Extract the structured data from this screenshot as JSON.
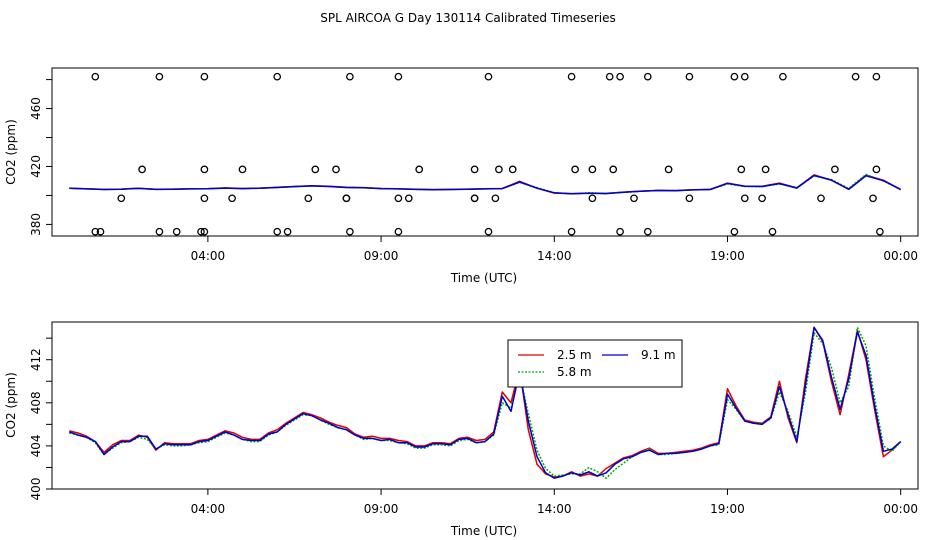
{
  "figure_title": "SPL AIRCOA G  Day 130114  Calibrated Timeseries",
  "chart_data": [
    {
      "type": "line",
      "title": "",
      "xlabel": "Time (UTC)",
      "ylabel": "CO2 (ppm)",
      "xlim": [
        -0.5,
        24.5
      ],
      "ylim": [
        372,
        488
      ],
      "x_tick_values": [
        4,
        9,
        14,
        19,
        24
      ],
      "x_tick_labels": [
        "04:00",
        "09:00",
        "14:00",
        "19:00",
        "00:00"
      ],
      "y_tick_values": [
        380,
        400,
        420,
        440,
        460,
        480
      ],
      "y_tick_labels": [
        "380",
        "",
        "420",
        "",
        "460",
        ""
      ],
      "x": [
        0.0,
        0.5,
        1.0,
        1.5,
        2.0,
        2.5,
        3.0,
        3.5,
        4.0,
        4.5,
        5.0,
        5.5,
        6.0,
        6.5,
        7.0,
        7.5,
        8.0,
        8.5,
        9.0,
        9.5,
        10.0,
        10.5,
        11.0,
        11.5,
        12.0,
        12.5,
        13.0,
        13.5,
        14.0,
        14.5,
        15.0,
        15.5,
        16.0,
        16.5,
        17.0,
        17.5,
        18.0,
        18.5,
        19.0,
        19.5,
        20.0,
        20.5,
        21.0,
        21.5,
        22.0,
        22.5,
        23.0,
        23.5,
        24.0
      ],
      "series": [
        {
          "name": "2.5 m",
          "color": "#dd0000",
          "values": [
            405,
            404.6,
            404.2,
            404.4,
            405,
            404.3,
            404.4,
            404.6,
            404.7,
            405.2,
            404.8,
            405.1,
            405.6,
            406.2,
            406.7,
            406.3,
            405.6,
            405.4,
            404.8,
            404.6,
            404.3,
            404.1,
            404.2,
            404.4,
            404.6,
            404.8,
            409.8,
            405,
            401.6,
            401.3,
            401.6,
            401.4,
            402.3,
            403,
            403.5,
            403.4,
            403.9,
            404.2,
            408.5,
            406.4,
            406.3,
            408.5,
            405.2,
            414.2,
            410.5,
            404.4,
            414,
            410.5,
            404
          ]
        },
        {
          "name": "5.8 m",
          "color": "#00aa00",
          "values": [
            405,
            404.5,
            404.1,
            404.3,
            404.9,
            404.2,
            404.3,
            404.5,
            404.6,
            405.1,
            404.7,
            405,
            405.5,
            406.1,
            406.6,
            406.2,
            405.5,
            405.3,
            404.7,
            404.5,
            404.2,
            404,
            404.1,
            404.3,
            404.5,
            404.7,
            409,
            405.4,
            401.9,
            401.1,
            401.8,
            401.5,
            402.1,
            402.9,
            403.4,
            403.3,
            403.8,
            404.1,
            408,
            406.2,
            406.1,
            408,
            405.5,
            413.5,
            411,
            404.8,
            414.5,
            410,
            404.2
          ]
        },
        {
          "name": "9.1 m",
          "color": "#0000cc",
          "values": [
            405,
            404.5,
            404.1,
            404.3,
            404.9,
            404.2,
            404.3,
            404.5,
            404.6,
            405.1,
            404.7,
            405,
            405.5,
            406.1,
            406.6,
            406.2,
            405.5,
            405.3,
            404.7,
            404.5,
            404.2,
            404,
            404.1,
            404.3,
            404.5,
            404.7,
            409.3,
            405,
            401.8,
            401.2,
            401.5,
            401.3,
            402.2,
            402.9,
            403.4,
            403.3,
            403.8,
            404.1,
            408.3,
            406.3,
            406.2,
            408.2,
            405.1,
            413.8,
            410.6,
            404.2,
            413.6,
            410.2,
            404.2
          ]
        }
      ],
      "points_y_values": [
        375,
        375,
        375,
        375,
        375,
        375,
        375,
        375,
        375,
        375,
        375,
        375,
        375,
        375,
        375,
        375,
        375,
        398,
        398,
        398,
        398,
        398,
        398,
        398,
        398,
        398,
        398,
        398,
        398,
        398,
        398,
        398,
        398,
        398,
        398,
        418,
        418,
        418,
        418,
        418,
        418,
        418,
        418,
        418,
        418,
        418,
        418,
        418,
        418,
        418,
        418,
        418,
        482,
        482,
        482,
        482,
        482,
        482,
        482,
        482,
        482,
        482,
        482,
        482,
        482,
        482,
        482,
        482,
        482
      ]
    },
    {
      "type": "line",
      "title": "",
      "xlabel": "Time (UTC)",
      "ylabel": "CO2 (ppm)",
      "xlim": [
        -0.5,
        24.5
      ],
      "ylim": [
        400,
        415.5
      ],
      "x_tick_values": [
        4,
        9,
        14,
        19,
        24
      ],
      "x_tick_labels": [
        "04:00",
        "09:00",
        "14:00",
        "19:00",
        "00:00"
      ],
      "y_tick_values": [
        400,
        402,
        404,
        406,
        408,
        410,
        412,
        414
      ],
      "y_tick_labels": [
        "400",
        "",
        "404",
        "",
        "408",
        "",
        "412",
        ""
      ],
      "legend": [
        "2.5 m",
        "9.1 m",
        "5.8 m"
      ],
      "legend_position": "top-right",
      "x": [
        0.0,
        0.25,
        0.5,
        0.75,
        1.0,
        1.25,
        1.5,
        1.75,
        2.0,
        2.25,
        2.5,
        2.75,
        3.0,
        3.25,
        3.5,
        3.75,
        4.0,
        4.25,
        4.5,
        4.75,
        5.0,
        5.25,
        5.5,
        5.75,
        6.0,
        6.25,
        6.5,
        6.75,
        7.0,
        7.25,
        7.5,
        7.75,
        8.0,
        8.25,
        8.5,
        8.75,
        9.0,
        9.25,
        9.5,
        9.75,
        10.0,
        10.25,
        10.5,
        10.75,
        11.0,
        11.25,
        11.5,
        11.75,
        12.0,
        12.25,
        12.5,
        12.75,
        13.0,
        13.25,
        13.5,
        13.75,
        14.0,
        14.25,
        14.5,
        14.75,
        15.0,
        15.25,
        15.5,
        15.75,
        16.0,
        16.25,
        16.5,
        16.75,
        17.0,
        17.25,
        17.5,
        17.75,
        18.0,
        18.25,
        18.5,
        18.75,
        19.0,
        19.25,
        19.5,
        19.75,
        20.0,
        20.25,
        20.5,
        20.75,
        21.0,
        21.25,
        21.5,
        21.75,
        22.0,
        22.25,
        22.5,
        22.75,
        23.0,
        23.25,
        23.5,
        23.75,
        24.0
      ],
      "series": [
        {
          "name": "2.5 m",
          "color": "#dd0000",
          "values": [
            405.4,
            405.2,
            404.9,
            404.4,
            403.4,
            404.1,
            404.5,
            404.5,
            405.0,
            404.8,
            403.6,
            404.3,
            404.2,
            404.2,
            404.2,
            404.5,
            404.6,
            405.0,
            405.4,
            405.2,
            404.8,
            404.6,
            404.6,
            405.2,
            405.5,
            406.1,
            406.6,
            407.1,
            406.9,
            406.6,
            406.2,
            405.9,
            405.7,
            405.1,
            404.8,
            404.9,
            404.7,
            404.7,
            404.5,
            404.4,
            404.0,
            404.0,
            404.3,
            404.3,
            404.2,
            404.7,
            404.8,
            404.5,
            404.6,
            405.3,
            409.0,
            408.0,
            411.2,
            405.5,
            402.3,
            401.4,
            401.1,
            401.2,
            401.6,
            401.2,
            401.4,
            401.2,
            401.9,
            402.4,
            402.9,
            403.1,
            403.5,
            403.8,
            403.3,
            403.3,
            403.4,
            403.5,
            403.6,
            403.8,
            404.1,
            404.3,
            409.3,
            407.7,
            406.4,
            406.2,
            406.1,
            406.7,
            410.0,
            406.6,
            404.3,
            410.2,
            415.0,
            413.7,
            410.0,
            406.9,
            410.6,
            414.7,
            412.0,
            407.3,
            403.0,
            403.6,
            404.4
          ]
        },
        {
          "name": "5.8 m",
          "color": "#00aa00",
          "values": [
            405.2,
            405.0,
            404.8,
            404.3,
            403.2,
            403.8,
            404.3,
            404.4,
            404.8,
            404.6,
            403.7,
            404.1,
            404.0,
            404.0,
            404.1,
            404.3,
            404.4,
            404.8,
            405.2,
            405.0,
            404.6,
            404.4,
            404.4,
            405.0,
            405.3,
            405.9,
            406.4,
            406.9,
            406.8,
            406.4,
            406.0,
            405.7,
            405.5,
            405.0,
            404.6,
            404.7,
            404.5,
            404.5,
            404.3,
            404.2,
            403.8,
            403.8,
            404.1,
            404.1,
            404.0,
            404.5,
            404.6,
            404.3,
            404.4,
            405.0,
            408.0,
            407.5,
            410.6,
            407.0,
            403.6,
            401.9,
            401.2,
            401.3,
            401.4,
            401.4,
            402.0,
            401.6,
            401.0,
            401.8,
            402.4,
            403.0,
            403.4,
            403.7,
            403.2,
            403.2,
            403.3,
            403.4,
            403.5,
            403.7,
            404.0,
            404.1,
            408.3,
            407.4,
            406.3,
            406.1,
            406.1,
            406.5,
            409.0,
            407.2,
            404.8,
            408.9,
            414.5,
            413.5,
            411.3,
            408.0,
            409.5,
            415.0,
            413.3,
            408.4,
            404.0,
            403.5,
            404.4
          ]
        },
        {
          "name": "9.1 m",
          "color": "#0000cc",
          "values": [
            405.3,
            405.0,
            404.8,
            404.4,
            403.2,
            403.9,
            404.4,
            404.4,
            404.9,
            404.9,
            403.7,
            404.2,
            404.1,
            404.1,
            404.1,
            404.4,
            404.5,
            404.9,
            405.3,
            405.0,
            404.6,
            404.5,
            404.5,
            405.1,
            405.3,
            406.0,
            406.5,
            407.0,
            406.8,
            406.4,
            406.1,
            405.7,
            405.5,
            405.0,
            404.7,
            404.7,
            404.5,
            404.6,
            404.3,
            404.3,
            403.9,
            403.9,
            404.2,
            404.2,
            404.1,
            404.6,
            404.7,
            404.3,
            404.4,
            405.1,
            408.6,
            407.2,
            411.0,
            406.3,
            403.0,
            401.5,
            401.0,
            401.2,
            401.5,
            401.3,
            401.6,
            401.2,
            401.5,
            402.3,
            402.8,
            403.0,
            403.4,
            403.6,
            403.2,
            403.3,
            403.3,
            403.4,
            403.5,
            403.7,
            404.0,
            404.2,
            408.8,
            407.5,
            406.3,
            406.1,
            406.0,
            406.6,
            409.5,
            406.9,
            404.4,
            409.6,
            415.0,
            413.8,
            410.4,
            407.4,
            410.2,
            414.6,
            412.4,
            407.7,
            403.5,
            403.7,
            404.4
          ]
        }
      ]
    }
  ]
}
